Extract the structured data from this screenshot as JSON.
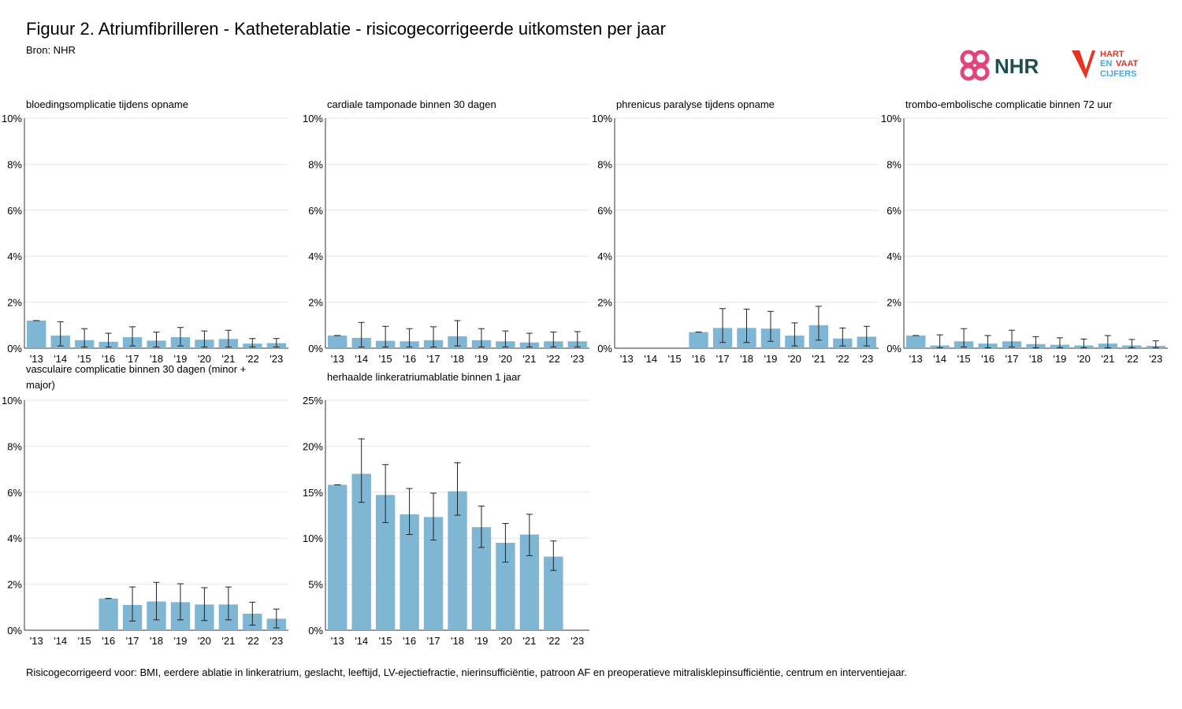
{
  "header": {
    "title": "Figuur 2. Atriumfibrilleren - Katheterablatie - risicogecorrigeerde uitkomsten per jaar",
    "source": "Bron: NHR"
  },
  "logos": {
    "nhr_text": "NHR",
    "hvc_lines": [
      "HART",
      "EN",
      "VAAT",
      "CIJFERS"
    ],
    "nhr_color": "#e2457a",
    "nhr_text_color": "#1f4f4f",
    "hvc_red": "#e63323",
    "hvc_blue": "#4aa6d8"
  },
  "colors": {
    "bar": "#7fb6d3",
    "grid": "#e6e6e6",
    "axis": "#333333"
  },
  "footnote": "Risicogecorrigeerd voor: BMI, eerdere ablatie in linkeratrium, geslacht, leeftijd, LV-ejectiefractie, nierinsufficiëntie, patroon AF en preoperatieve mitralisklepinsufficiëntie, centrum en interventiejaar.",
  "chart_data": [
    {
      "type": "bar",
      "title": [
        "bloedingsomplicatie tijdens opname"
      ],
      "categories": [
        "'13",
        "'14",
        "'15",
        "'16",
        "'17",
        "'18",
        "'19",
        "'20",
        "'21",
        "'22",
        "'23"
      ],
      "values": [
        1.2,
        0.55,
        0.35,
        0.28,
        0.48,
        0.33,
        0.48,
        0.37,
        0.4,
        0.2,
        0.22
      ],
      "ci_low": [
        1.2,
        0.1,
        0.05,
        0.05,
        0.1,
        0.05,
        0.1,
        0.05,
        0.05,
        0.05,
        0.05
      ],
      "ci_high": [
        1.2,
        1.15,
        0.85,
        0.65,
        0.93,
        0.7,
        0.9,
        0.75,
        0.78,
        0.42,
        0.42
      ],
      "ylim": [
        0,
        10
      ],
      "yticks": [
        0,
        2,
        4,
        6,
        8,
        10
      ],
      "ytick_labels": [
        "0%",
        "2%",
        "4%",
        "6%",
        "8%",
        "10%"
      ]
    },
    {
      "type": "bar",
      "title": [
        "cardiale tamponade binnen 30 dagen"
      ],
      "categories": [
        "'13",
        "'14",
        "'15",
        "'16",
        "'17",
        "'18",
        "'19",
        "'20",
        "'21",
        "'22",
        "'23"
      ],
      "values": [
        0.55,
        0.45,
        0.32,
        0.3,
        0.35,
        0.52,
        0.35,
        0.3,
        0.25,
        0.3,
        0.3
      ],
      "ci_low": [
        0.55,
        0.05,
        0.05,
        0.05,
        0.05,
        0.1,
        0.05,
        0.05,
        0.05,
        0.05,
        0.05
      ],
      "ci_high": [
        0.55,
        1.12,
        0.95,
        0.85,
        0.93,
        1.2,
        0.85,
        0.75,
        0.65,
        0.7,
        0.72
      ],
      "ylim": [
        0,
        10
      ],
      "yticks": [
        0,
        2,
        4,
        6,
        8,
        10
      ],
      "ytick_labels": [
        "0%",
        "2%",
        "4%",
        "6%",
        "8%",
        "10%"
      ]
    },
    {
      "type": "bar",
      "title": [
        "phrenicus paralyse tijdens opname"
      ],
      "categories": [
        "'13",
        "'14",
        "'15",
        "'16",
        "'17",
        "'18",
        "'19",
        "'20",
        "'21",
        "'22",
        "'23"
      ],
      "values": [
        null,
        null,
        null,
        0.7,
        0.88,
        0.88,
        0.85,
        0.55,
        1.0,
        0.42,
        0.5
      ],
      "ci_low": [
        null,
        null,
        null,
        0.7,
        0.25,
        0.25,
        0.3,
        0.1,
        0.35,
        0.1,
        0.1
      ],
      "ci_high": [
        null,
        null,
        null,
        0.7,
        1.72,
        1.7,
        1.6,
        1.1,
        1.82,
        0.88,
        0.95
      ],
      "ylim": [
        0,
        10
      ],
      "yticks": [
        0,
        2,
        4,
        6,
        8,
        10
      ],
      "ytick_labels": [
        "0%",
        "2%",
        "4%",
        "6%",
        "8%",
        "10%"
      ]
    },
    {
      "type": "bar",
      "title": [
        "trombo-embolische complicatie binnen 72 uur"
      ],
      "categories": [
        "'13",
        "'14",
        "'15",
        "'16",
        "'17",
        "'18",
        "'19",
        "'20",
        "'21",
        "'22",
        "'23"
      ],
      "values": [
        0.55,
        0.12,
        0.3,
        0.2,
        0.3,
        0.18,
        0.15,
        0.12,
        0.2,
        0.12,
        0.1
      ],
      "ci_low": [
        0.55,
        0.02,
        0.05,
        0.02,
        0.05,
        0.02,
        0.02,
        0.02,
        0.02,
        0.02,
        0.02
      ],
      "ci_high": [
        0.55,
        0.58,
        0.85,
        0.55,
        0.78,
        0.5,
        0.45,
        0.4,
        0.55,
        0.38,
        0.32
      ],
      "ylim": [
        0,
        10
      ],
      "yticks": [
        0,
        2,
        4,
        6,
        8,
        10
      ],
      "ytick_labels": [
        "0%",
        "2%",
        "4%",
        "6%",
        "8%",
        "10%"
      ]
    },
    {
      "type": "bar",
      "title": [
        "vasculaire complicatie binnen 30 dagen (minor +",
        " major)"
      ],
      "categories": [
        "'13",
        "'14",
        "'15",
        "'16",
        "'17",
        "'18",
        "'19",
        "'20",
        "'21",
        "'22",
        "'23"
      ],
      "values": [
        null,
        null,
        null,
        1.38,
        1.1,
        1.25,
        1.22,
        1.12,
        1.12,
        0.72,
        0.5
      ],
      "ci_low": [
        null,
        null,
        null,
        1.38,
        0.4,
        0.45,
        0.45,
        0.42,
        0.45,
        0.22,
        0.1
      ],
      "ci_high": [
        null,
        null,
        null,
        1.38,
        1.88,
        2.08,
        2.02,
        1.85,
        1.88,
        1.22,
        0.92
      ],
      "ylim": [
        0,
        10
      ],
      "yticks": [
        0,
        2,
        4,
        6,
        8,
        10
      ],
      "ytick_labels": [
        "0%",
        "2%",
        "4%",
        "6%",
        "8%",
        "10%"
      ]
    },
    {
      "type": "bar",
      "title": [
        "herhaalde linkeratriumablatie binnen 1 jaar"
      ],
      "categories": [
        "'13",
        "'14",
        "'15",
        "'16",
        "'17",
        "'18",
        "'19",
        "'20",
        "'21",
        "'22",
        "'23"
      ],
      "values": [
        15.8,
        17.0,
        14.7,
        12.6,
        12.3,
        15.1,
        11.2,
        9.5,
        10.4,
        8.0,
        null
      ],
      "ci_low": [
        15.8,
        13.9,
        11.7,
        10.4,
        9.8,
        12.5,
        9.0,
        7.4,
        8.1,
        6.5,
        null
      ],
      "ci_high": [
        15.8,
        20.8,
        18.0,
        15.4,
        14.9,
        18.2,
        13.5,
        11.6,
        12.6,
        9.7,
        null
      ],
      "ylim": [
        0,
        25
      ],
      "yticks": [
        0,
        5,
        10,
        15,
        20,
        25
      ],
      "ytick_labels": [
        "0%",
        "5%",
        "10%",
        "15%",
        "20%",
        "25%"
      ]
    }
  ]
}
